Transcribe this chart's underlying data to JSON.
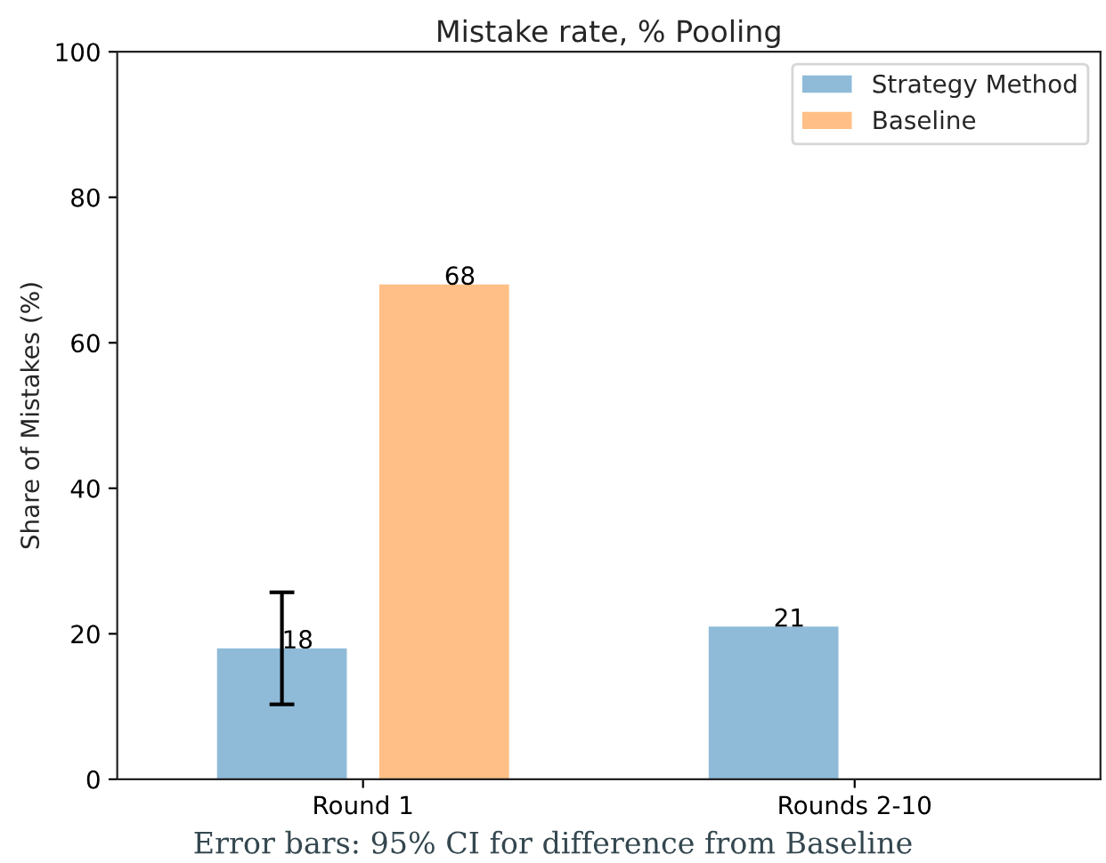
{
  "chart_data": {
    "type": "bar",
    "title": "Mistake rate, % Pooling",
    "ylabel": "Share of Mistakes (%)",
    "categories": [
      "Round 1",
      "Rounds 2-10"
    ],
    "series": [
      {
        "name": "Strategy Method",
        "color": "#8fbbd9",
        "values": [
          18,
          21
        ],
        "errors": [
          7.7,
          null
        ]
      },
      {
        "name": "Baseline",
        "color": "#ffbf86",
        "values": [
          68,
          null
        ]
      }
    ],
    "ylim": [
      0,
      100
    ],
    "yticks": [
      0,
      20,
      40,
      60,
      80,
      100
    ],
    "data_labels": true,
    "legend": "top right",
    "annotations": [
      "Error bars: 95% CI for difference from Baseline"
    ]
  }
}
